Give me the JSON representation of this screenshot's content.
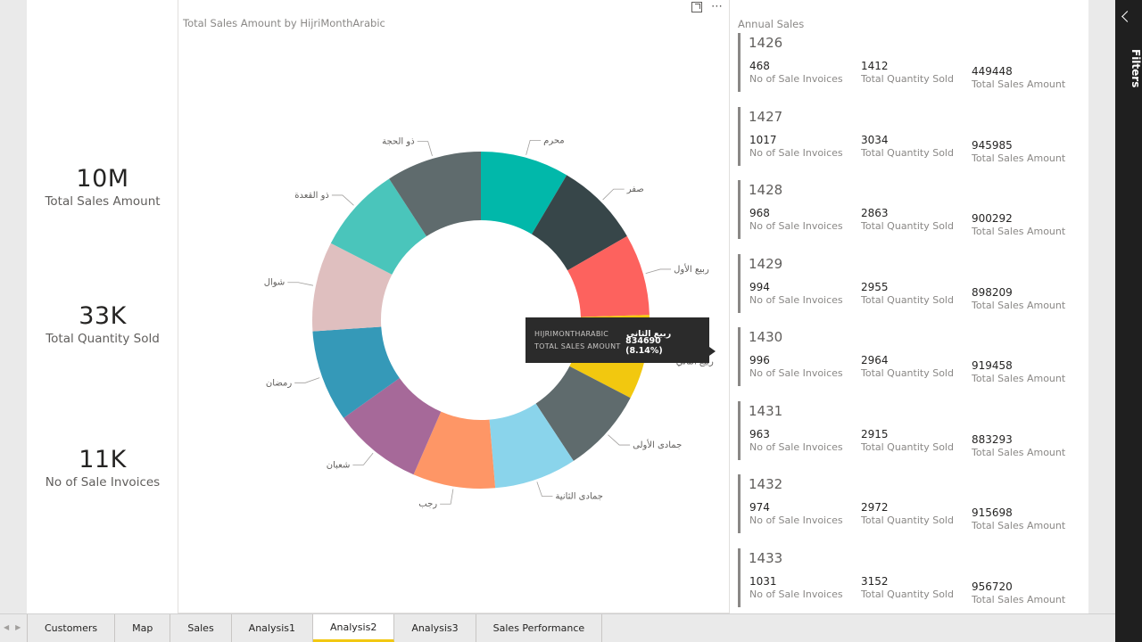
{
  "kpis": [
    {
      "value": "10M",
      "label": "Total Sales Amount"
    },
    {
      "value": "33K",
      "label": "Total Quantity Sold"
    },
    {
      "value": "11K",
      "label": "No of Sale Invoices"
    }
  ],
  "chart_data": {
    "type": "pie",
    "title": "Total Sales Amount by HijriMonthArabic",
    "donut": true,
    "slices": [
      {
        "label": "محرم",
        "value": 8.5,
        "color": "#01b8aa"
      },
      {
        "label": "صفر",
        "value": 8.2,
        "color": "#374649"
      },
      {
        "label": "ربيع الأول",
        "value": 7.8,
        "color": "#fd625e"
      },
      {
        "label": "ربيع الثاني",
        "value": 8.14,
        "color": "#f2c80f"
      },
      {
        "label": "جمادى الأولى",
        "value": 8.1,
        "color": "#5f6b6d"
      },
      {
        "label": "جمادى الثانية",
        "value": 7.9,
        "color": "#8ad4eb"
      },
      {
        "label": "رجب",
        "value": 7.9,
        "color": "#fe9666"
      },
      {
        "label": "شعبان",
        "value": 8.6,
        "color": "#a66999"
      },
      {
        "label": "رمضان",
        "value": 8.8,
        "color": "#3599b8"
      },
      {
        "label": "شوال",
        "value": 8.6,
        "color": "#dfbfbf"
      },
      {
        "label": "ذو القعدة",
        "value": 8.3,
        "color": "#4ac5bb"
      },
      {
        "label": "ذو الحجة",
        "value": 9.16,
        "color": "#5f6b6d"
      }
    ]
  },
  "tooltip": {
    "key1": "HIJRIMONTHARABIC",
    "val1": "ربيع الثاني",
    "key2": "TOTAL SALES AMOUNT",
    "val2": "834690 (8.14%)"
  },
  "annual": {
    "title": "Annual Sales",
    "labels": {
      "invoices": "No of Sale Invoices",
      "quantity": "Total Quantity Sold",
      "amount": "Total Sales Amount"
    },
    "years": [
      {
        "year": "1426",
        "invoices": "468",
        "quantity": "1412",
        "amount": "449448"
      },
      {
        "year": "1427",
        "invoices": "1017",
        "quantity": "3034",
        "amount": "945985"
      },
      {
        "year": "1428",
        "invoices": "968",
        "quantity": "2863",
        "amount": "900292"
      },
      {
        "year": "1429",
        "invoices": "994",
        "quantity": "2955",
        "amount": "898209"
      },
      {
        "year": "1430",
        "invoices": "996",
        "quantity": "2964",
        "amount": "919458"
      },
      {
        "year": "1431",
        "invoices": "963",
        "quantity": "2915",
        "amount": "883293"
      },
      {
        "year": "1432",
        "invoices": "974",
        "quantity": "2972",
        "amount": "915698"
      },
      {
        "year": "1433",
        "invoices": "1031",
        "quantity": "3152",
        "amount": "956720"
      }
    ]
  },
  "filters": {
    "label": "Filters"
  },
  "tabs": [
    {
      "label": "Customers"
    },
    {
      "label": "Map"
    },
    {
      "label": "Sales"
    },
    {
      "label": "Analysis1"
    },
    {
      "label": "Analysis2"
    },
    {
      "label": "Analysis3"
    },
    {
      "label": "Sales Performance"
    }
  ],
  "active_tab": "Analysis2"
}
